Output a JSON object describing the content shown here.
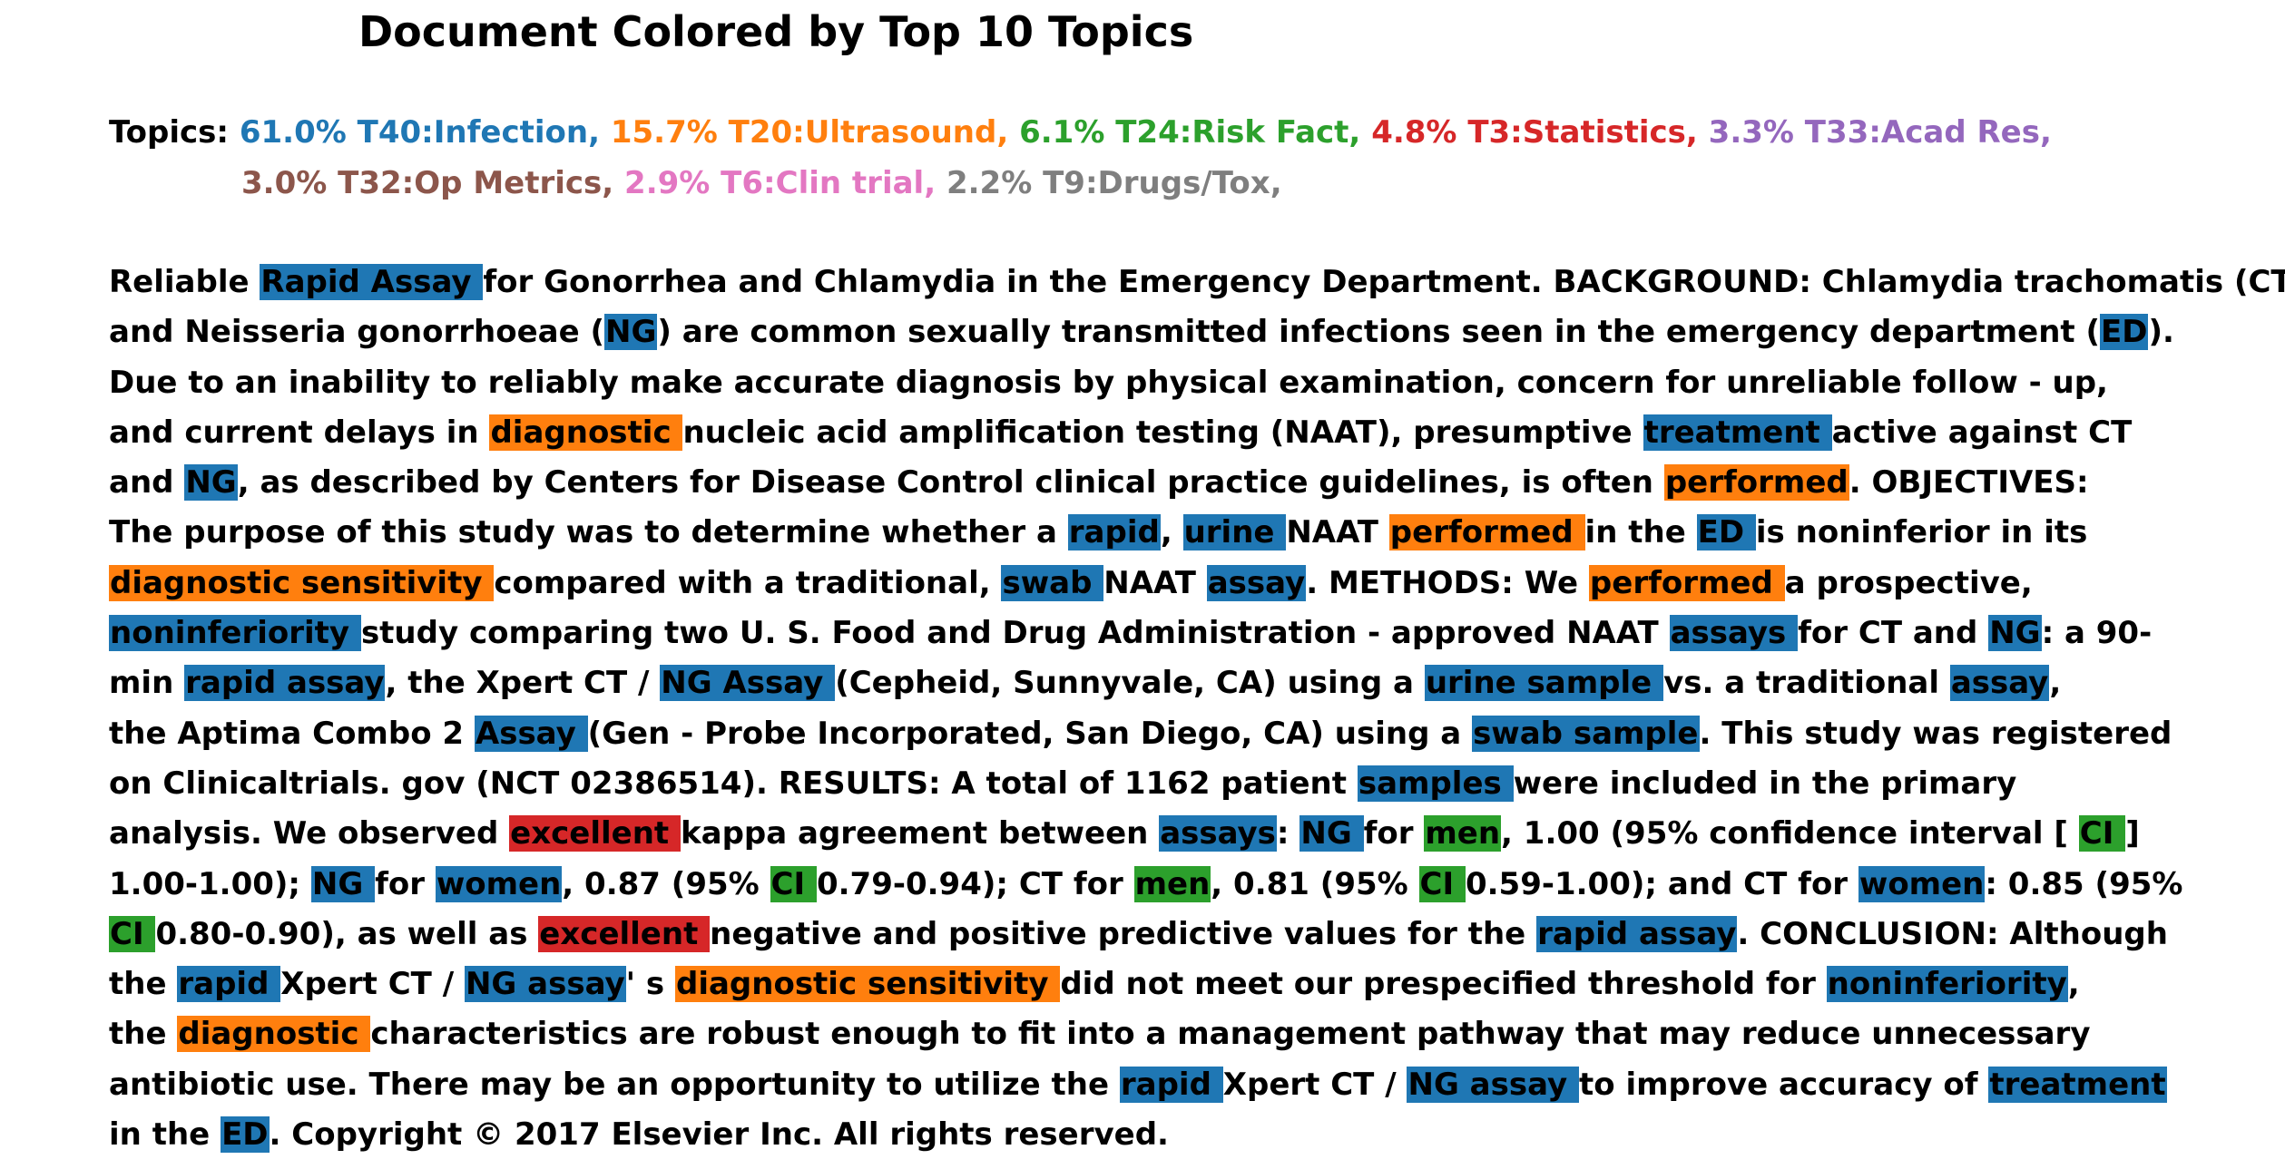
{
  "title": "Document Colored by Top 10 Topics",
  "legend": {
    "label": "Topics:",
    "lines": [
      [
        {
          "text": "61.0% T40:Infection,",
          "color": "#1f77b4"
        },
        {
          "text": "15.7% T20:Ultrasound,",
          "color": "#ff7f0e"
        },
        {
          "text": "6.1% T24:Risk Fact,",
          "color": "#2ca02c"
        },
        {
          "text": "4.8% T3:Statistics,",
          "color": "#d62728"
        },
        {
          "text": "3.3% T33:Acad Res,",
          "color": "#9467bd"
        }
      ],
      [
        {
          "text": "3.0% T32:Op Metrics,",
          "color": "#8c564b"
        },
        {
          "text": "2.9% T6:Clin trial,",
          "color": "#e377c2"
        },
        {
          "text": "2.2% T9:Drugs/Tox,",
          "color": "#7f7f7f"
        }
      ]
    ]
  },
  "topic_colors": {
    "T40": "#1f77b4",
    "T20": "#ff7f0e",
    "T24": "#2ca02c",
    "T3": "#d62728"
  },
  "document_lines": [
    [
      [
        "Reliable "
      ],
      [
        "Rapid Assay ",
        "T40"
      ],
      [
        "for Gonorrhea and Chlamydia in the Emergency Department. BACKGROUND: Chlamydia trachomatis (CT)"
      ]
    ],
    [
      [
        "and Neisseria gonorrhoeae ("
      ],
      [
        "NG",
        "T40"
      ],
      [
        ") are common sexually transmitted infections seen in the emergency department ("
      ],
      [
        "ED",
        "T40"
      ],
      [
        ")."
      ]
    ],
    [
      [
        "Due to an inability to reliably make accurate diagnosis by physical examination, concern for unreliable follow - up,"
      ]
    ],
    [
      [
        "and current delays in "
      ],
      [
        "diagnostic ",
        "T20"
      ],
      [
        "nucleic acid amplification testing (NAAT), presumptive "
      ],
      [
        "treatment ",
        "T40"
      ],
      [
        "active against CT"
      ]
    ],
    [
      [
        "and "
      ],
      [
        "NG",
        "T40"
      ],
      [
        ", as described by Centers for Disease Control clinical practice guidelines, is often "
      ],
      [
        "performed",
        "T20"
      ],
      [
        ". OBJECTIVES:"
      ]
    ],
    [
      [
        "The purpose of this study was to determine whether a "
      ],
      [
        "rapid",
        "T40"
      ],
      [
        ", "
      ],
      [
        "urine ",
        "T40"
      ],
      [
        "NAAT "
      ],
      [
        "performed ",
        "T20"
      ],
      [
        "in the "
      ],
      [
        "ED ",
        "T40"
      ],
      [
        "is noninferior in its"
      ]
    ],
    [
      [
        "diagnostic sensitivity ",
        "T20"
      ],
      [
        "compared with a traditional, "
      ],
      [
        "swab ",
        "T40"
      ],
      [
        "NAAT "
      ],
      [
        "assay",
        "T40"
      ],
      [
        ". METHODS: We "
      ],
      [
        "performed ",
        "T20"
      ],
      [
        "a prospective,"
      ]
    ],
    [
      [
        "noninferiority ",
        "T40"
      ],
      [
        "study comparing two U. S. Food and Drug Administration - approved NAAT "
      ],
      [
        "assays ",
        "T40"
      ],
      [
        "for CT and "
      ],
      [
        "NG",
        "T40"
      ],
      [
        ": a 90-"
      ]
    ],
    [
      [
        "min "
      ],
      [
        "rapid assay",
        "T40"
      ],
      [
        ", the Xpert CT / "
      ],
      [
        "NG Assay ",
        "T40"
      ],
      [
        "(Cepheid, Sunnyvale, CA) using a "
      ],
      [
        "urine sample ",
        "T40"
      ],
      [
        "vs. a traditional "
      ],
      [
        "assay",
        "T40"
      ],
      [
        ","
      ]
    ],
    [
      [
        "the Aptima Combo 2 "
      ],
      [
        "Assay ",
        "T40"
      ],
      [
        "(Gen - Probe Incorporated, San Diego, CA) using a "
      ],
      [
        "swab sample",
        "T40"
      ],
      [
        ". This study was registered"
      ]
    ],
    [
      [
        "on Clinicaltrials. gov (NCT 02386514). RESULTS: A total of 1162 patient "
      ],
      [
        "samples ",
        "T40"
      ],
      [
        "were included in the primary"
      ]
    ],
    [
      [
        "analysis. We observed "
      ],
      [
        "excellent ",
        "T3"
      ],
      [
        "kappa agreement between "
      ],
      [
        "assays",
        "T40"
      ],
      [
        ": "
      ],
      [
        "NG ",
        "T40"
      ],
      [
        "for "
      ],
      [
        "men",
        "T24"
      ],
      [
        ", 1.00 (95% confidence interval [ "
      ],
      [
        "CI ",
        "T24"
      ],
      [
        "]"
      ]
    ],
    [
      [
        "1.00-1.00); "
      ],
      [
        "NG ",
        "T40"
      ],
      [
        "for "
      ],
      [
        "women",
        "T40"
      ],
      [
        ", 0.87 (95% "
      ],
      [
        "CI ",
        "T24"
      ],
      [
        "0.79-0.94); CT for "
      ],
      [
        "men",
        "T24"
      ],
      [
        ", 0.81 (95% "
      ],
      [
        "CI ",
        "T24"
      ],
      [
        "0.59-1.00); and CT for "
      ],
      [
        "women",
        "T40"
      ],
      [
        ": 0.85 (95%"
      ]
    ],
    [
      [
        "CI ",
        "T24"
      ],
      [
        "0.80-0.90), as well as "
      ],
      [
        "excellent ",
        "T3"
      ],
      [
        "negative and positive predictive values for the "
      ],
      [
        "rapid assay",
        "T40"
      ],
      [
        ". CONCLUSION: Although"
      ]
    ],
    [
      [
        "the "
      ],
      [
        "rapid ",
        "T40"
      ],
      [
        "Xpert CT / "
      ],
      [
        "NG assay",
        "T40"
      ],
      [
        "' s "
      ],
      [
        "diagnostic sensitivity ",
        "T20"
      ],
      [
        "did not meet our prespecified threshold for "
      ],
      [
        "noninferiority",
        "T40"
      ],
      [
        ","
      ]
    ],
    [
      [
        "the "
      ],
      [
        "diagnostic ",
        "T20"
      ],
      [
        "characteristics are robust enough to fit into a management pathway that may reduce unnecessary"
      ]
    ],
    [
      [
        "antibiotic use. There may be an opportunity to utilize the "
      ],
      [
        "rapid ",
        "T40"
      ],
      [
        "Xpert CT / "
      ],
      [
        "NG assay ",
        "T40"
      ],
      [
        "to improve accuracy of "
      ],
      [
        "treatment ",
        "T40"
      ]
    ],
    [
      [
        "in the "
      ],
      [
        "ED",
        "T40"
      ],
      [
        ". Copyright © 2017 Elsevier Inc. All rights reserved."
      ]
    ]
  ]
}
